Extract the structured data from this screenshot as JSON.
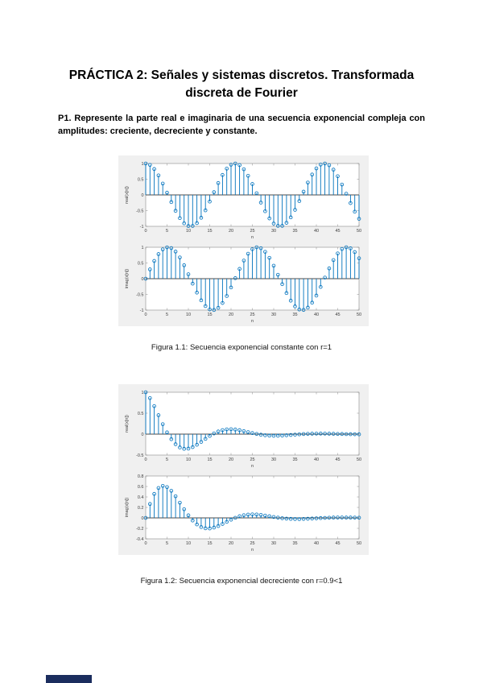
{
  "title": {
    "line1": "PRÁCTICA 2: Señales y sistemas discretos. Transformada",
    "line2": "discreta de Fourier"
  },
  "p1": {
    "text": "P1. Represente la parte real e imaginaria de una secuencia exponencial compleja con amplitudes: creciente, decreciente y constante."
  },
  "figures": [
    {
      "caption": "Figura 1.1: Secuencia exponencial constante con r=1"
    },
    {
      "caption": "Figura 1.2: Secuencia exponencial decreciente con r=0.9<1"
    }
  ],
  "colors": {
    "stem_blue": "#0072BD",
    "figure_background": "#f0f0f0",
    "plot_background": "#ffffff",
    "axis_box": "#8a8a8a",
    "zero_baseline": "#4a4a4a",
    "tick_text": "#3c3c3c"
  },
  "chart_data": [
    {
      "type": "stem",
      "title": "",
      "xlabel": "n",
      "ylabel": "real(x[n])",
      "xlim": [
        0,
        50
      ],
      "ylim": [
        -1,
        1
      ],
      "xticks": [
        0,
        5,
        10,
        15,
        20,
        25,
        30,
        35,
        40,
        45,
        50
      ],
      "yticks": [
        -1,
        -0.5,
        0,
        0.5,
        1
      ],
      "grid": false,
      "x": [
        0,
        1,
        2,
        3,
        4,
        5,
        6,
        7,
        8,
        9,
        10,
        11,
        12,
        13,
        14,
        15,
        16,
        17,
        18,
        19,
        20,
        21,
        22,
        23,
        24,
        25,
        26,
        27,
        28,
        29,
        30,
        31,
        32,
        33,
        34,
        35,
        36,
        37,
        38,
        39,
        40,
        41,
        42,
        43,
        44,
        45,
        46,
        47,
        48,
        49,
        50
      ],
      "values": [
        1,
        0.955,
        0.825,
        0.622,
        0.362,
        0.071,
        -0.227,
        -0.505,
        -0.737,
        -0.904,
        -0.99,
        -0.987,
        -0.896,
        -0.726,
        -0.49,
        -0.211,
        0.087,
        0.379,
        0.635,
        0.835,
        0.96,
        1,
        0.95,
        0.817,
        0.608,
        0.347,
        0.054,
        -0.244,
        -0.519,
        -0.748,
        -0.911,
        -0.985,
        -0.985,
        -0.889,
        -0.714,
        -0.475,
        -0.195,
        0.104,
        0.394,
        0.648,
        0.844,
        0.965,
        0.999,
        0.945,
        0.806,
        0.595,
        0.33,
        0.037,
        -0.26,
        -0.532,
        -0.76
      ]
    },
    {
      "type": "stem",
      "title": "",
      "xlabel": "n",
      "ylabel": "imag(x[n])",
      "xlim": [
        0,
        50
      ],
      "ylim": [
        -1,
        1
      ],
      "xticks": [
        0,
        5,
        10,
        15,
        20,
        25,
        30,
        35,
        40,
        45,
        50
      ],
      "yticks": [
        -1,
        -0.5,
        0,
        0.5,
        1
      ],
      "grid": false,
      "x": [
        0,
        1,
        2,
        3,
        4,
        5,
        6,
        7,
        8,
        9,
        10,
        11,
        12,
        13,
        14,
        15,
        16,
        17,
        18,
        19,
        20,
        21,
        22,
        23,
        24,
        25,
        26,
        27,
        28,
        29,
        30,
        31,
        32,
        33,
        34,
        35,
        36,
        37,
        38,
        39,
        40,
        41,
        42,
        43,
        44,
        45,
        46,
        47,
        48,
        49,
        50
      ],
      "values": [
        0,
        0.296,
        0.565,
        0.783,
        0.932,
        0.997,
        0.974,
        0.863,
        0.675,
        0.427,
        0.141,
        -0.158,
        -0.443,
        -0.688,
        -0.872,
        -0.978,
        -0.996,
        -0.926,
        -0.773,
        -0.551,
        -0.279,
        0.017,
        0.312,
        0.577,
        0.794,
        0.938,
        0.999,
        0.97,
        0.855,
        0.663,
        0.412,
        0.125,
        -0.174,
        -0.458,
        -0.7,
        -0.88,
        -0.981,
        -0.995,
        -0.919,
        -0.762,
        -0.537,
        -0.263,
        0.034,
        0.328,
        0.592,
        0.804,
        0.944,
        0.999,
        0.966,
        0.847,
        0.65
      ]
    },
    {
      "type": "stem",
      "title": "",
      "xlabel": "n",
      "ylabel": "real(x[n])",
      "xlim": [
        0,
        50
      ],
      "ylim": [
        -0.5,
        1
      ],
      "xticks": [
        0,
        5,
        10,
        15,
        20,
        25,
        30,
        35,
        40,
        45,
        50
      ],
      "yticks": [
        -0.5,
        0,
        0.5,
        1
      ],
      "grid": false,
      "x": [
        0,
        1,
        2,
        3,
        4,
        5,
        6,
        7,
        8,
        9,
        10,
        11,
        12,
        13,
        14,
        15,
        16,
        17,
        18,
        19,
        20,
        21,
        22,
        23,
        24,
        25,
        26,
        27,
        28,
        29,
        30,
        31,
        32,
        33,
        34,
        35,
        36,
        37,
        38,
        39,
        40,
        41,
        42,
        43,
        44,
        45,
        46,
        47,
        48,
        49,
        50
      ],
      "values": [
        1,
        0.86,
        0.668,
        0.453,
        0.238,
        0.042,
        -0.121,
        -0.241,
        -0.317,
        -0.35,
        -0.345,
        -0.31,
        -0.253,
        -0.185,
        -0.112,
        -0.043,
        0.016,
        0.063,
        0.095,
        0.113,
        0.117,
        0.109,
        0.094,
        0.072,
        0.048,
        0.025,
        0.004,
        -0.014,
        -0.027,
        -0.035,
        -0.039,
        -0.038,
        -0.034,
        -0.027,
        -0.02,
        -0.012,
        -0.005,
        0.002,
        0.007,
        0.01,
        0.012,
        0.013,
        0.012,
        0.01,
        0.008,
        0.005,
        0.003,
        0,
        -0.002,
        -0.003,
        -0.004
      ]
    },
    {
      "type": "stem",
      "title": "",
      "xlabel": "n",
      "ylabel": "imag(x[n])",
      "xlim": [
        0,
        50
      ],
      "ylim": [
        -0.4,
        0.8
      ],
      "xticks": [
        0,
        5,
        10,
        15,
        20,
        25,
        30,
        35,
        40,
        45,
        50
      ],
      "yticks": [
        -0.4,
        -0.2,
        0,
        0.2,
        0.4,
        0.6,
        0.8
      ],
      "grid": false,
      "x": [
        0,
        1,
        2,
        3,
        4,
        5,
        6,
        7,
        8,
        9,
        10,
        11,
        12,
        13,
        14,
        15,
        16,
        17,
        18,
        19,
        20,
        21,
        22,
        23,
        24,
        25,
        26,
        27,
        28,
        29,
        30,
        31,
        32,
        33,
        34,
        35,
        36,
        37,
        38,
        39,
        40,
        41,
        42,
        43,
        44,
        45,
        46,
        47,
        48,
        49,
        50
      ],
      "values": [
        0,
        0.266,
        0.458,
        0.571,
        0.611,
        0.588,
        0.517,
        0.413,
        0.29,
        0.165,
        0.049,
        -0.05,
        -0.125,
        -0.175,
        -0.199,
        -0.201,
        -0.184,
        -0.155,
        -0.116,
        -0.075,
        -0.034,
        0.002,
        0.031,
        0.051,
        0.063,
        0.067,
        0.065,
        0.057,
        0.044,
        0.031,
        0.017,
        0.005,
        -0.006,
        -0.014,
        -0.019,
        -0.022,
        -0.023,
        -0.02,
        -0.016,
        -0.012,
        -0.008,
        -0.003,
        0,
        0.004,
        0.006,
        0.007,
        0.007,
        0.006,
        0.006,
        0.005,
        0.003
      ]
    }
  ]
}
